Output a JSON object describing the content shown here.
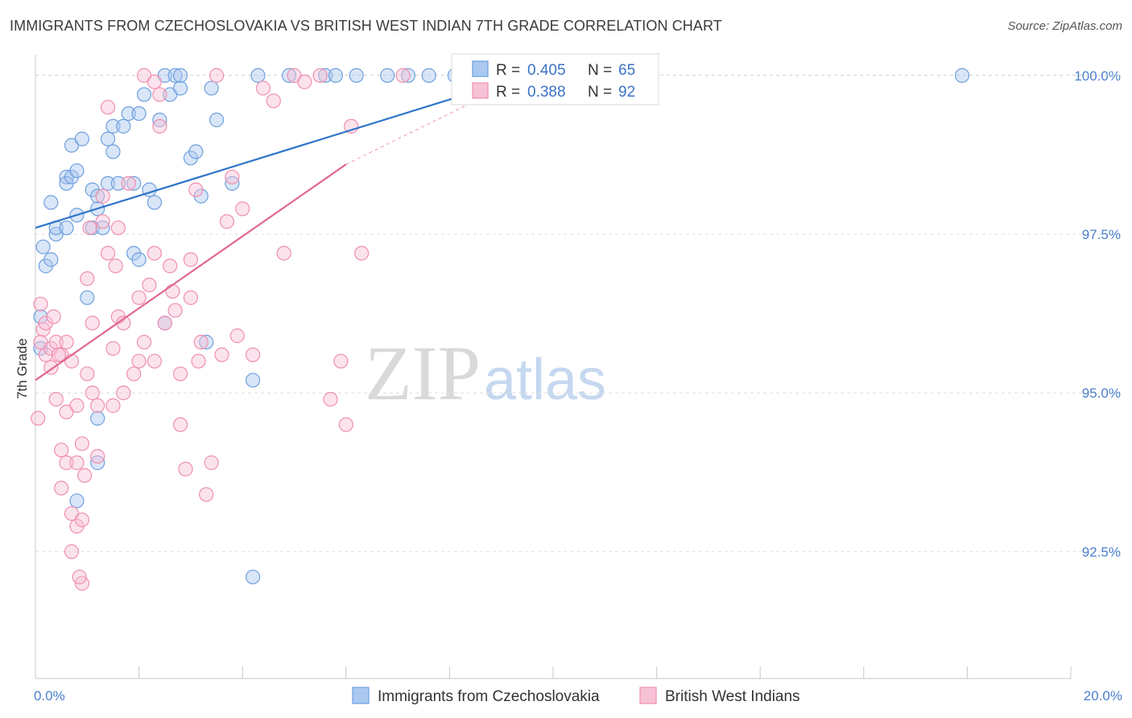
{
  "chart_data": {
    "type": "scatter",
    "title": "IMMIGRANTS FROM CZECHOSLOVAKIA VS BRITISH WEST INDIAN 7TH GRADE CORRELATION CHART",
    "source": "Source: ZipAtlas.com",
    "watermark": {
      "zip": "ZIP",
      "atlas": "atlas"
    },
    "xlabel": "",
    "ylabel": "7th Grade",
    "xlim": [
      0.0,
      20.0
    ],
    "ylim": [
      90.5,
      100.2
    ],
    "x_tick_labels": [
      {
        "value": 0.0,
        "label": "0.0%"
      },
      {
        "value": 20.0,
        "label": "20.0%"
      }
    ],
    "x_minor_ticks": [
      2,
      4,
      6,
      8,
      10,
      12,
      14,
      16,
      18
    ],
    "y_ticks": [
      {
        "value": 92.5,
        "label": "92.5%"
      },
      {
        "value": 95.0,
        "label": "95.0%"
      },
      {
        "value": 97.5,
        "label": "97.5%"
      },
      {
        "value": 100.0,
        "label": "100.0%"
      }
    ],
    "top_gridline": 100.0,
    "legend_stats": [
      {
        "r_label": "R =",
        "r_value": "0.405",
        "n_label": "N =",
        "n_value": "65",
        "color": "#6fa0de"
      },
      {
        "r_label": "R =",
        "r_value": "0.388",
        "n_label": "N =",
        "n_value": "92",
        "color": "#f08fb0"
      }
    ],
    "series": [
      {
        "name": "Immigrants from Czechoslovakia",
        "color": "#6fa0de",
        "fill": "#aac8f0",
        "line_color": "#2e74c9",
        "trend": {
          "x0": 0.0,
          "y0": 97.6,
          "x1": 9.5,
          "y1": 100.0,
          "dashed_to": null
        },
        "points": [
          [
            0.1,
            96.2
          ],
          [
            0.1,
            95.7
          ],
          [
            0.15,
            97.3
          ],
          [
            0.2,
            97.0
          ],
          [
            0.3,
            97.1
          ],
          [
            0.3,
            98.0
          ],
          [
            0.4,
            97.5
          ],
          [
            0.4,
            97.6
          ],
          [
            0.6,
            98.4
          ],
          [
            0.6,
            97.6
          ],
          [
            0.6,
            98.3
          ],
          [
            0.7,
            98.9
          ],
          [
            0.7,
            98.4
          ],
          [
            0.8,
            97.8
          ],
          [
            0.8,
            98.5
          ],
          [
            0.9,
            99.0
          ],
          [
            1.0,
            96.5
          ],
          [
            1.1,
            98.2
          ],
          [
            1.1,
            97.6
          ],
          [
            1.2,
            98.1
          ],
          [
            1.2,
            97.9
          ],
          [
            1.3,
            97.6
          ],
          [
            1.4,
            98.3
          ],
          [
            1.4,
            99.0
          ],
          [
            1.5,
            98.8
          ],
          [
            1.5,
            99.2
          ],
          [
            1.6,
            98.3
          ],
          [
            1.7,
            99.2
          ],
          [
            1.8,
            99.4
          ],
          [
            1.9,
            98.3
          ],
          [
            1.9,
            97.2
          ],
          [
            2.0,
            97.1
          ],
          [
            2.0,
            99.4
          ],
          [
            2.1,
            99.7
          ],
          [
            2.2,
            98.2
          ],
          [
            2.3,
            98.0
          ],
          [
            2.4,
            99.3
          ],
          [
            2.5,
            96.1
          ],
          [
            2.5,
            100.0
          ],
          [
            2.6,
            99.7
          ],
          [
            2.7,
            100.0
          ],
          [
            2.8,
            99.8
          ],
          [
            2.8,
            100.0
          ],
          [
            3.0,
            98.7
          ],
          [
            3.1,
            98.8
          ],
          [
            3.2,
            98.1
          ],
          [
            3.3,
            95.8
          ],
          [
            3.4,
            99.8
          ],
          [
            3.5,
            99.3
          ],
          [
            3.8,
            98.3
          ],
          [
            4.2,
            95.2
          ],
          [
            4.3,
            100.0
          ],
          [
            4.9,
            100.0
          ],
          [
            5.6,
            100.0
          ],
          [
            5.8,
            100.0
          ],
          [
            6.2,
            100.0
          ],
          [
            6.8,
            100.0
          ],
          [
            7.2,
            100.0
          ],
          [
            7.6,
            100.0
          ],
          [
            1.2,
            94.6
          ],
          [
            1.2,
            93.9
          ],
          [
            0.8,
            93.3
          ],
          [
            4.2,
            92.1
          ],
          [
            17.9,
            100.0
          ],
          [
            8.1,
            100.0
          ]
        ]
      },
      {
        "name": "British West Indians",
        "color": "#f08fb0",
        "fill": "#f7c2d6",
        "line_color": "#e06892",
        "trend": {
          "x0": 0.0,
          "y0": 95.2,
          "x1": 6.0,
          "y1": 98.6,
          "dashed_to": {
            "x": 9.5,
            "y": 100.0
          }
        },
        "points": [
          [
            0.05,
            94.6
          ],
          [
            0.1,
            96.4
          ],
          [
            0.1,
            95.8
          ],
          [
            0.15,
            96.0
          ],
          [
            0.2,
            95.6
          ],
          [
            0.2,
            96.1
          ],
          [
            0.3,
            95.7
          ],
          [
            0.3,
            95.4
          ],
          [
            0.4,
            95.8
          ],
          [
            0.4,
            94.9
          ],
          [
            0.5,
            95.6
          ],
          [
            0.5,
            94.1
          ],
          [
            0.5,
            93.5
          ],
          [
            0.6,
            95.8
          ],
          [
            0.6,
            94.7
          ],
          [
            0.6,
            93.9
          ],
          [
            0.7,
            93.1
          ],
          [
            0.7,
            92.5
          ],
          [
            0.7,
            95.5
          ],
          [
            0.8,
            94.8
          ],
          [
            0.8,
            93.9
          ],
          [
            0.8,
            92.9
          ],
          [
            0.9,
            94.2
          ],
          [
            0.9,
            93.0
          ],
          [
            0.9,
            92.0
          ],
          [
            1.0,
            95.3
          ],
          [
            1.0,
            96.8
          ],
          [
            1.1,
            96.1
          ],
          [
            1.1,
            95.0
          ],
          [
            1.2,
            94.8
          ],
          [
            1.2,
            94.0
          ],
          [
            1.3,
            97.7
          ],
          [
            1.3,
            98.1
          ],
          [
            1.4,
            99.5
          ],
          [
            1.4,
            97.2
          ],
          [
            1.5,
            95.7
          ],
          [
            1.5,
            94.8
          ],
          [
            1.6,
            97.6
          ],
          [
            1.6,
            96.2
          ],
          [
            1.7,
            95.0
          ],
          [
            1.7,
            96.1
          ],
          [
            1.8,
            98.3
          ],
          [
            1.9,
            95.3
          ],
          [
            2.0,
            96.5
          ],
          [
            2.0,
            95.5
          ],
          [
            2.1,
            95.8
          ],
          [
            2.2,
            96.7
          ],
          [
            2.3,
            97.2
          ],
          [
            2.3,
            95.5
          ],
          [
            2.4,
            99.2
          ],
          [
            2.4,
            99.7
          ],
          [
            2.5,
            96.1
          ],
          [
            2.6,
            97.0
          ],
          [
            2.7,
            96.3
          ],
          [
            2.8,
            95.3
          ],
          [
            2.8,
            94.5
          ],
          [
            2.9,
            93.8
          ],
          [
            3.0,
            96.5
          ],
          [
            3.0,
            97.1
          ],
          [
            3.1,
            98.2
          ],
          [
            3.2,
            95.8
          ],
          [
            3.3,
            93.4
          ],
          [
            3.4,
            93.9
          ],
          [
            3.6,
            95.6
          ],
          [
            3.7,
            97.7
          ],
          [
            3.8,
            98.4
          ],
          [
            3.9,
            95.9
          ],
          [
            4.0,
            97.9
          ],
          [
            4.2,
            95.6
          ],
          [
            4.4,
            99.8
          ],
          [
            4.6,
            99.6
          ],
          [
            4.8,
            97.2
          ],
          [
            5.0,
            100.0
          ],
          [
            5.2,
            99.9
          ],
          [
            5.5,
            100.0
          ],
          [
            5.7,
            94.9
          ],
          [
            5.9,
            95.5
          ],
          [
            6.0,
            94.5
          ],
          [
            6.1,
            99.2
          ],
          [
            6.3,
            97.2
          ],
          [
            7.1,
            100.0
          ],
          [
            2.1,
            100.0
          ],
          [
            3.5,
            100.0
          ],
          [
            2.3,
            99.9
          ],
          [
            0.35,
            96.2
          ],
          [
            0.45,
            95.6
          ],
          [
            1.05,
            97.6
          ],
          [
            1.55,
            97.0
          ],
          [
            2.65,
            96.6
          ],
          [
            3.15,
            95.5
          ],
          [
            0.95,
            93.7
          ],
          [
            0.85,
            92.1
          ]
        ]
      }
    ]
  }
}
